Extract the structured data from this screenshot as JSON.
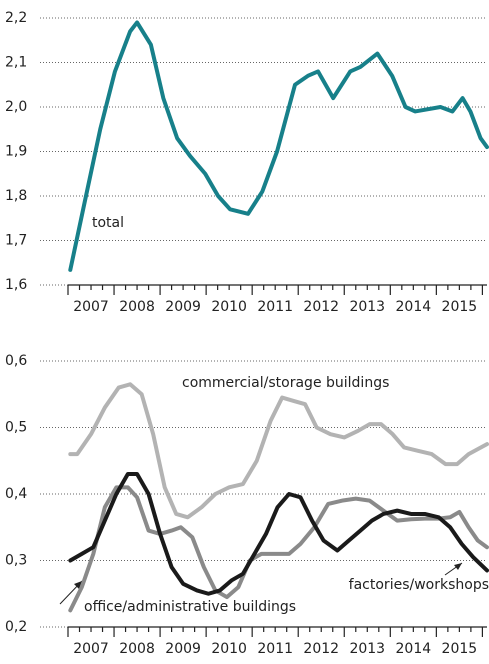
{
  "chart_data": [
    {
      "type": "line",
      "xlim": [
        2007,
        2016.1
      ],
      "xticks": [
        {
          "value": 2007.5,
          "label": "2007"
        },
        {
          "value": 2008.5,
          "label": "2008"
        },
        {
          "value": 2009.5,
          "label": "2009"
        },
        {
          "value": 2010.5,
          "label": "2010"
        },
        {
          "value": 2011.5,
          "label": "2011"
        },
        {
          "value": 2012.5,
          "label": "2012"
        },
        {
          "value": 2013.5,
          "label": "2013"
        },
        {
          "value": 2014.5,
          "label": "2014"
        },
        {
          "value": 2015.5,
          "label": "2015"
        }
      ],
      "ylim": [
        1.6,
        2.2
      ],
      "yticks": [
        {
          "value": 1.6,
          "label": "1,6"
        },
        {
          "value": 1.7,
          "label": "1,7"
        },
        {
          "value": 1.8,
          "label": "1,8"
        },
        {
          "value": 1.9,
          "label": "1,9"
        },
        {
          "value": 2.0,
          "label": "2,0"
        },
        {
          "value": 2.1,
          "label": "2,1"
        },
        {
          "value": 2.2,
          "label": "2,2"
        }
      ],
      "grid": true,
      "series": [
        {
          "name": "total",
          "color": "#17808a",
          "x": [
            2007.05,
            2007.37,
            2007.7,
            2008.02,
            2008.35,
            2008.5,
            2008.8,
            2009.07,
            2009.37,
            2009.65,
            2009.98,
            2010.26,
            2010.52,
            2010.91,
            2011.22,
            2011.54,
            2011.93,
            2012.21,
            2012.43,
            2012.76,
            2013.13,
            2013.35,
            2013.72,
            2014.04,
            2014.33,
            2014.54,
            2015.09,
            2015.35,
            2015.57,
            2015.74,
            2015.96,
            2016.1
          ],
          "values": [
            1.634,
            1.79,
            1.95,
            2.08,
            2.17,
            2.19,
            2.14,
            2.02,
            1.93,
            1.89,
            1.85,
            1.8,
            1.77,
            1.76,
            1.81,
            1.9,
            2.05,
            2.07,
            2.08,
            2.02,
            2.08,
            2.09,
            2.12,
            2.07,
            2.0,
            1.99,
            2.0,
            1.99,
            2.02,
            1.99,
            1.93,
            1.91
          ]
        }
      ]
    },
    {
      "type": "line",
      "xlim": [
        2007,
        2016.1
      ],
      "xticks": [
        {
          "value": 2007.5,
          "label": "2007"
        },
        {
          "value": 2008.5,
          "label": "2008"
        },
        {
          "value": 2009.5,
          "label": "2009"
        },
        {
          "value": 2010.5,
          "label": "2010"
        },
        {
          "value": 2011.5,
          "label": "2011"
        },
        {
          "value": 2012.5,
          "label": "2012"
        },
        {
          "value": 2013.5,
          "label": "2013"
        },
        {
          "value": 2014.5,
          "label": "2014"
        },
        {
          "value": 2015.5,
          "label": "2015"
        }
      ],
      "ylim": [
        0.2,
        0.6
      ],
      "yticks": [
        {
          "value": 0.2,
          "label": "0,2"
        },
        {
          "value": 0.3,
          "label": "0,3"
        },
        {
          "value": 0.4,
          "label": "0,4"
        },
        {
          "value": 0.5,
          "label": "0,5"
        },
        {
          "value": 0.6,
          "label": "0,6"
        }
      ],
      "grid": true,
      "series": [
        {
          "name": "commercial/storage buildings",
          "color": "#b3b3b3",
          "x": [
            2007.05,
            2007.2,
            2007.5,
            2007.8,
            2008.1,
            2008.35,
            2008.6,
            2008.85,
            2009.1,
            2009.35,
            2009.6,
            2009.9,
            2010.2,
            2010.5,
            2010.8,
            2011.1,
            2011.4,
            2011.65,
            2011.9,
            2012.15,
            2012.4,
            2012.7,
            2013.0,
            2013.3,
            2013.55,
            2013.8,
            2014.05,
            2014.3,
            2014.6,
            2014.9,
            2015.2,
            2015.45,
            2015.7,
            2016.1
          ],
          "values": [
            0.46,
            0.46,
            0.49,
            0.53,
            0.56,
            0.565,
            0.55,
            0.49,
            0.41,
            0.37,
            0.365,
            0.38,
            0.4,
            0.41,
            0.415,
            0.45,
            0.51,
            0.545,
            0.54,
            0.535,
            0.5,
            0.49,
            0.485,
            0.495,
            0.505,
            0.505,
            0.49,
            0.47,
            0.465,
            0.46,
            0.445,
            0.445,
            0.46,
            0.475
          ]
        },
        {
          "name": "office/administrative buildings",
          "color": "#8a8a8a",
          "x": [
            2007.05,
            2007.3,
            2007.55,
            2007.8,
            2008.05,
            2008.3,
            2008.5,
            2008.75,
            2009.0,
            2009.25,
            2009.45,
            2009.7,
            2009.95,
            2010.2,
            2010.45,
            2010.7,
            2010.95,
            2011.2,
            2011.5,
            2011.8,
            2012.05,
            2012.35,
            2012.65,
            2012.95,
            2013.25,
            2013.55,
            2013.85,
            2014.15,
            2014.45,
            2014.75,
            2015.05,
            2015.3,
            2015.5,
            2015.7,
            2015.9,
            2016.1
          ],
          "values": [
            0.225,
            0.26,
            0.31,
            0.38,
            0.41,
            0.41,
            0.395,
            0.345,
            0.34,
            0.345,
            0.35,
            0.335,
            0.29,
            0.255,
            0.245,
            0.26,
            0.3,
            0.31,
            0.31,
            0.31,
            0.325,
            0.35,
            0.385,
            0.39,
            0.393,
            0.39,
            0.375,
            0.36,
            0.362,
            0.363,
            0.363,
            0.365,
            0.373,
            0.35,
            0.33,
            0.32
          ]
        },
        {
          "name": "factories/workshops",
          "color": "#1a1a1a",
          "x": [
            2007.05,
            2007.3,
            2007.55,
            2007.8,
            2008.05,
            2008.3,
            2008.5,
            2008.75,
            2009.0,
            2009.25,
            2009.5,
            2009.8,
            2010.05,
            2010.3,
            2010.55,
            2010.8,
            2011.05,
            2011.3,
            2011.55,
            2011.8,
            2012.05,
            2012.3,
            2012.55,
            2012.85,
            2013.1,
            2013.35,
            2013.6,
            2013.85,
            2014.15,
            2014.45,
            2014.75,
            2015.05,
            2015.3,
            2015.55,
            2015.8,
            2016.1
          ],
          "values": [
            0.3,
            0.31,
            0.32,
            0.36,
            0.4,
            0.43,
            0.43,
            0.4,
            0.34,
            0.29,
            0.265,
            0.255,
            0.25,
            0.255,
            0.27,
            0.28,
            0.31,
            0.34,
            0.38,
            0.4,
            0.395,
            0.36,
            0.33,
            0.315,
            0.33,
            0.345,
            0.36,
            0.37,
            0.375,
            0.37,
            0.37,
            0.365,
            0.35,
            0.325,
            0.305,
            0.285
          ]
        }
      ]
    }
  ]
}
